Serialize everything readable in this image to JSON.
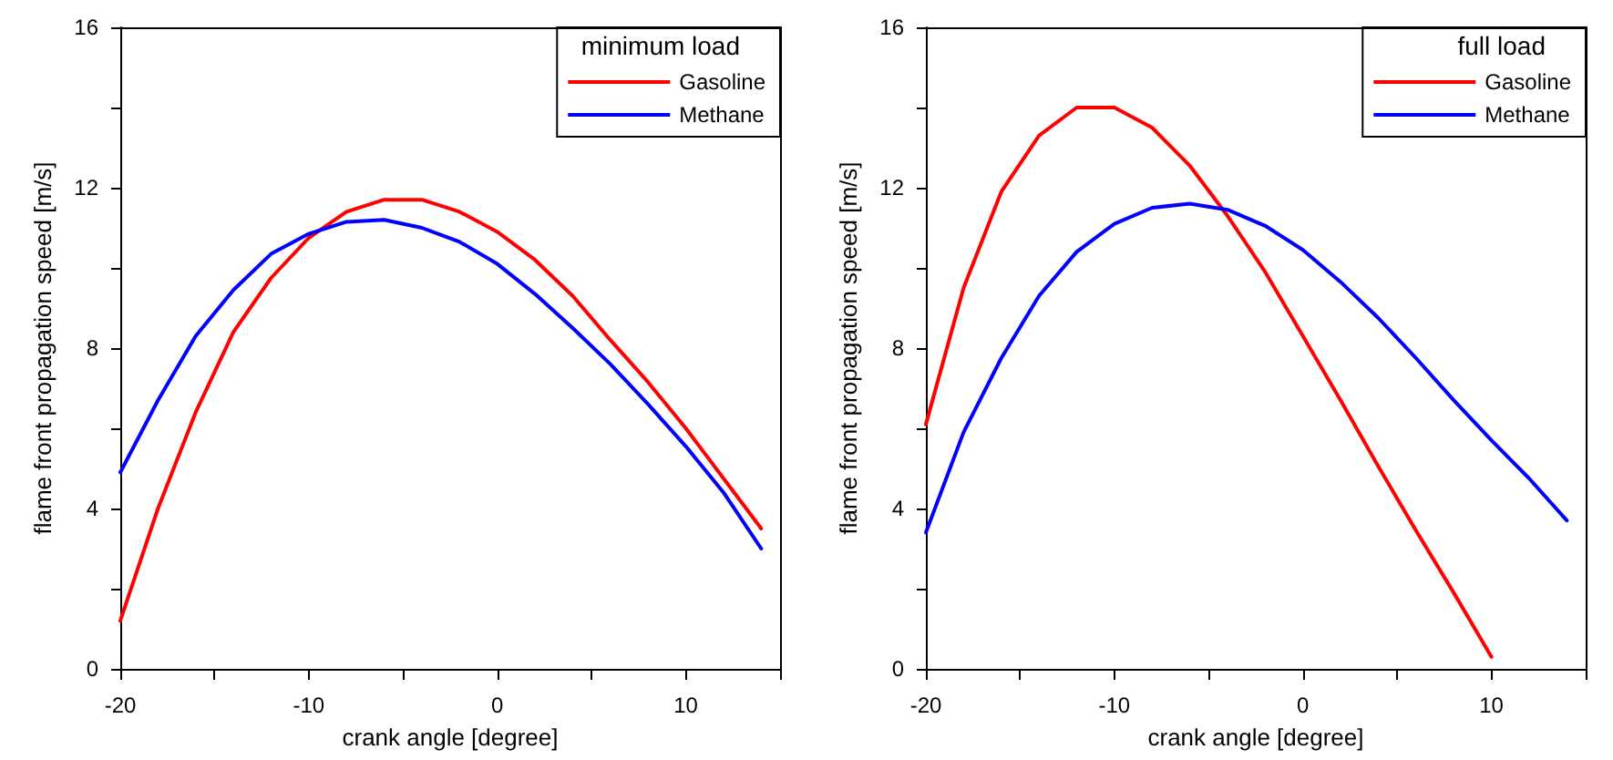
{
  "chart_data": [
    {
      "type": "line",
      "xlabel": "crank angle [degree]",
      "ylabel": "flame front propagation speed [m/s]",
      "legend_title": "minimum load",
      "legend": "top right",
      "grid": false,
      "marker": "none",
      "line_style": "solid",
      "x": [
        -20,
        -18,
        -16,
        -14,
        -12,
        -10,
        -8,
        -6,
        -4,
        -2,
        0,
        2,
        4,
        6,
        8,
        10,
        12,
        14
      ],
      "xlim": [
        -20,
        15
      ],
      "xticks": [
        -20,
        {
          "value": -15,
          "label": null
        },
        -10,
        {
          "value": -5,
          "label": null
        },
        0,
        {
          "value": 5,
          "label": null
        },
        10,
        {
          "value": 15,
          "label": null
        }
      ],
      "ylim": [
        0,
        16
      ],
      "yticks": [
        0,
        {
          "value": 2,
          "label": null
        },
        4,
        {
          "value": 6,
          "label": null
        },
        8,
        {
          "value": 10,
          "label": null
        },
        12,
        {
          "value": 14,
          "label": null
        },
        16
      ],
      "series": [
        {
          "name": "Gasoline",
          "color": "#ff0000",
          "values": [
            1.2,
            4.0,
            6.4,
            8.4,
            9.75,
            10.75,
            11.4,
            11.7,
            11.7,
            11.4,
            10.9,
            10.2,
            9.3,
            8.2,
            7.15,
            6.0,
            4.75,
            3.5
          ]
        },
        {
          "name": "Methane",
          "color": "#0000ff",
          "values": [
            4.9,
            6.7,
            8.3,
            9.45,
            10.35,
            10.85,
            11.15,
            11.2,
            11.0,
            10.65,
            10.1,
            9.35,
            8.5,
            7.6,
            6.6,
            5.55,
            4.4,
            3.0
          ]
        }
      ]
    },
    {
      "type": "line",
      "xlabel": "crank angle [degree]",
      "ylabel": "flame front propagation speed [m/s]",
      "legend_title": "full load",
      "legend": "top right",
      "grid": false,
      "marker": "none",
      "line_style": "solid",
      "x": [
        -20,
        -18,
        -16,
        -14,
        -12,
        -10,
        -8,
        -6,
        -4,
        -2,
        0,
        2,
        4,
        6,
        8,
        10,
        12,
        14
      ],
      "xlim": [
        -20,
        15
      ],
      "xticks": [
        -20,
        {
          "value": -15,
          "label": null
        },
        -10,
        {
          "value": -5,
          "label": null
        },
        0,
        {
          "value": 5,
          "label": null
        },
        10,
        {
          "value": 15,
          "label": null
        }
      ],
      "ylim": [
        0,
        16
      ],
      "yticks": [
        0,
        {
          "value": 2,
          "label": null
        },
        4,
        {
          "value": 6,
          "label": null
        },
        8,
        {
          "value": 10,
          "label": null
        },
        12,
        {
          "value": 14,
          "label": null
        },
        16
      ],
      "series": [
        {
          "name": "Gasoline",
          "color": "#ff0000",
          "values": [
            6.1,
            9.5,
            11.9,
            13.3,
            14.0,
            14.0,
            13.5,
            12.55,
            11.3,
            9.9,
            8.3,
            6.7,
            5.05,
            3.45,
            1.9,
            0.3,
            null,
            null
          ]
        },
        {
          "name": "Methane",
          "color": "#0000ff",
          "values": [
            3.4,
            5.9,
            7.75,
            9.3,
            10.4,
            11.1,
            11.5,
            11.6,
            11.45,
            11.05,
            10.45,
            9.65,
            8.75,
            7.75,
            6.7,
            5.7,
            4.75,
            3.7
          ]
        }
      ]
    }
  ]
}
